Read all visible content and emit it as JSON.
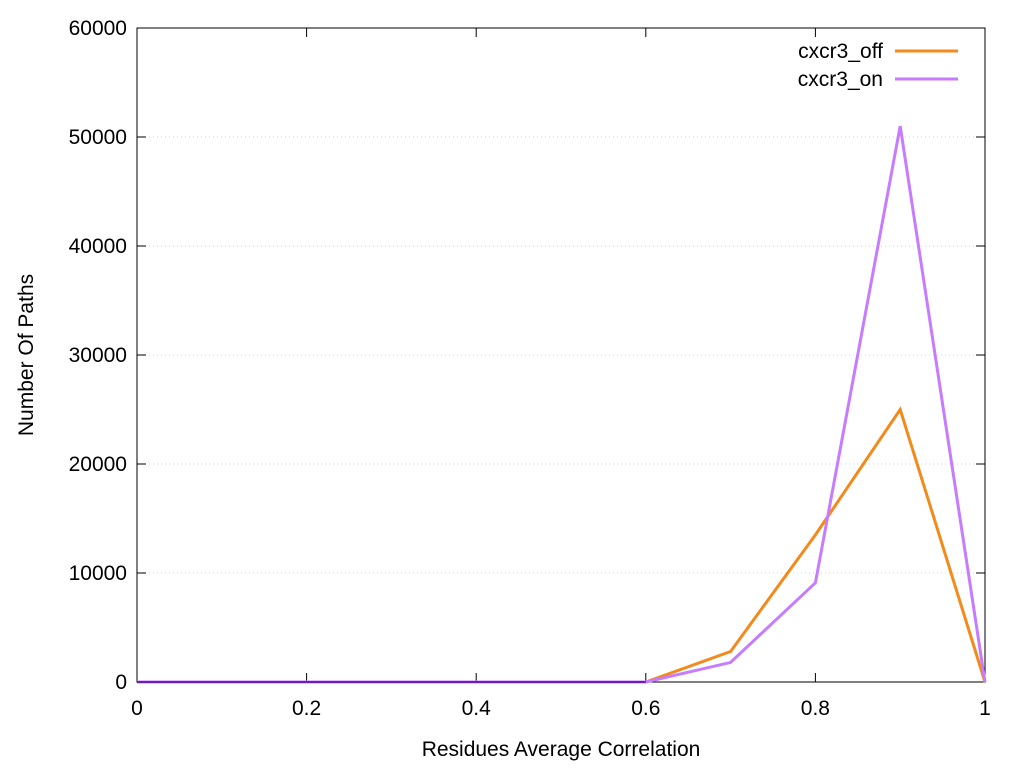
{
  "chart_data": {
    "type": "line",
    "title": "",
    "xlabel": "Residues Average Correlation",
    "ylabel": "Number Of Paths",
    "xlim": [
      0,
      1
    ],
    "ylim": [
      0,
      60000
    ],
    "x_ticks": [
      "0",
      "0.2",
      "0.4",
      "0.6",
      "0.8",
      "1"
    ],
    "y_ticks": [
      "0",
      "10000",
      "20000",
      "30000",
      "40000",
      "50000",
      "60000"
    ],
    "grid": "horizontal dotted",
    "legend_position": "top-right",
    "x": [
      0,
      0.1,
      0.2,
      0.3,
      0.4,
      0.5,
      0.6,
      0.7,
      0.8,
      0.9,
      1.0
    ],
    "series": [
      {
        "name": "cxcr3_off",
        "color": "#f28a1c",
        "values": [
          0,
          0,
          0,
          0,
          0,
          0,
          0,
          2800,
          13500,
          25000,
          0
        ]
      },
      {
        "name": "cxcr3_on",
        "color": "#c77cff",
        "values": [
          0,
          0,
          0,
          0,
          0,
          0,
          0,
          1800,
          9100,
          51000,
          0
        ]
      }
    ]
  }
}
